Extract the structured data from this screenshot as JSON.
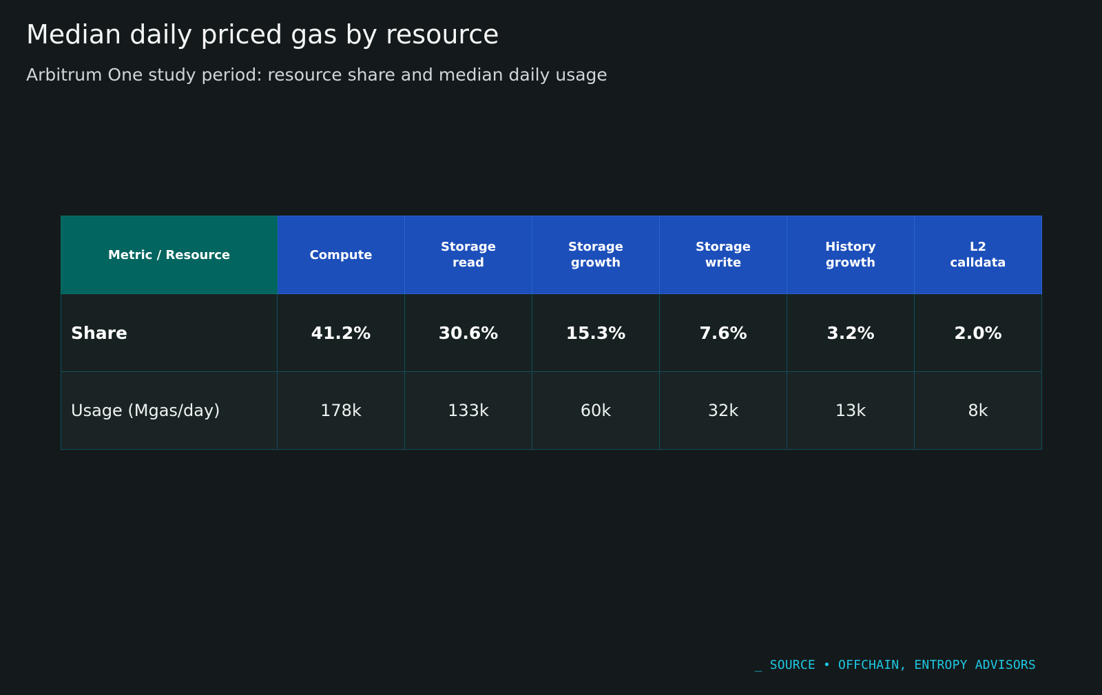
{
  "chart_data": {
    "type": "table",
    "title": "Median daily priced gas by resource",
    "subtitle": "Arbitrum One study period: resource share and median daily usage",
    "header_corner": "Metric / Resource",
    "columns": [
      "Compute",
      "Storage read",
      "Storage growth",
      "Storage write",
      "History growth",
      "L2 calldata"
    ],
    "rows": [
      {
        "label": "Share",
        "cells": [
          "41.2%",
          "30.6%",
          "15.3%",
          "7.6%",
          "3.2%",
          "2.0%"
        ],
        "values": [
          41.2,
          30.6,
          15.3,
          7.6,
          3.2,
          2.0
        ]
      },
      {
        "label": "Usage (Mgas/day)",
        "cells": [
          "178k",
          "133k",
          "60k",
          "32k",
          "13k",
          "8k"
        ],
        "values": [
          178000,
          133000,
          60000,
          32000,
          13000,
          8000
        ]
      }
    ],
    "source": "_ SOURCE • OFFCHAIN, ENTROPY ADVISORS"
  },
  "colors": {
    "background": "#141a1b",
    "header_blue": "#1c4fba",
    "header_teal": "#02655f",
    "source_cyan": "#1ec8e4"
  }
}
